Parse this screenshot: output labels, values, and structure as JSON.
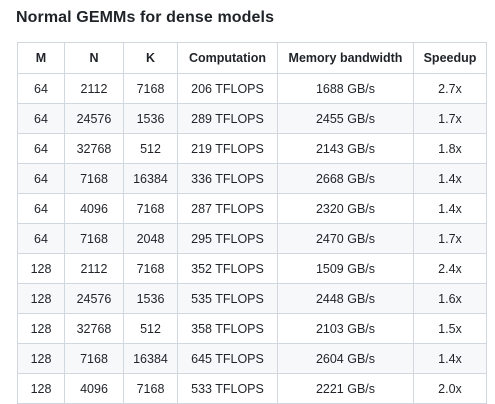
{
  "title": "Normal GEMMs for dense models",
  "table": {
    "headers": [
      "M",
      "N",
      "K",
      "Computation",
      "Memory bandwidth",
      "Speedup"
    ],
    "rows": [
      [
        "64",
        "2112",
        "7168",
        "206 TFLOPS",
        "1688 GB/s",
        "2.7x"
      ],
      [
        "64",
        "24576",
        "1536",
        "289 TFLOPS",
        "2455 GB/s",
        "1.7x"
      ],
      [
        "64",
        "32768",
        "512",
        "219 TFLOPS",
        "2143 GB/s",
        "1.8x"
      ],
      [
        "64",
        "7168",
        "16384",
        "336 TFLOPS",
        "2668 GB/s",
        "1.4x"
      ],
      [
        "64",
        "4096",
        "7168",
        "287 TFLOPS",
        "2320 GB/s",
        "1.4x"
      ],
      [
        "64",
        "7168",
        "2048",
        "295 TFLOPS",
        "2470 GB/s",
        "1.7x"
      ],
      [
        "128",
        "2112",
        "7168",
        "352 TFLOPS",
        "1509 GB/s",
        "2.4x"
      ],
      [
        "128",
        "24576",
        "1536",
        "535 TFLOPS",
        "2448 GB/s",
        "1.6x"
      ],
      [
        "128",
        "32768",
        "512",
        "358 TFLOPS",
        "2103 GB/s",
        "1.5x"
      ],
      [
        "128",
        "7168",
        "16384",
        "645 TFLOPS",
        "2604 GB/s",
        "1.4x"
      ],
      [
        "128",
        "4096",
        "7168",
        "533 TFLOPS",
        "2221 GB/s",
        "2.0x"
      ]
    ]
  }
}
